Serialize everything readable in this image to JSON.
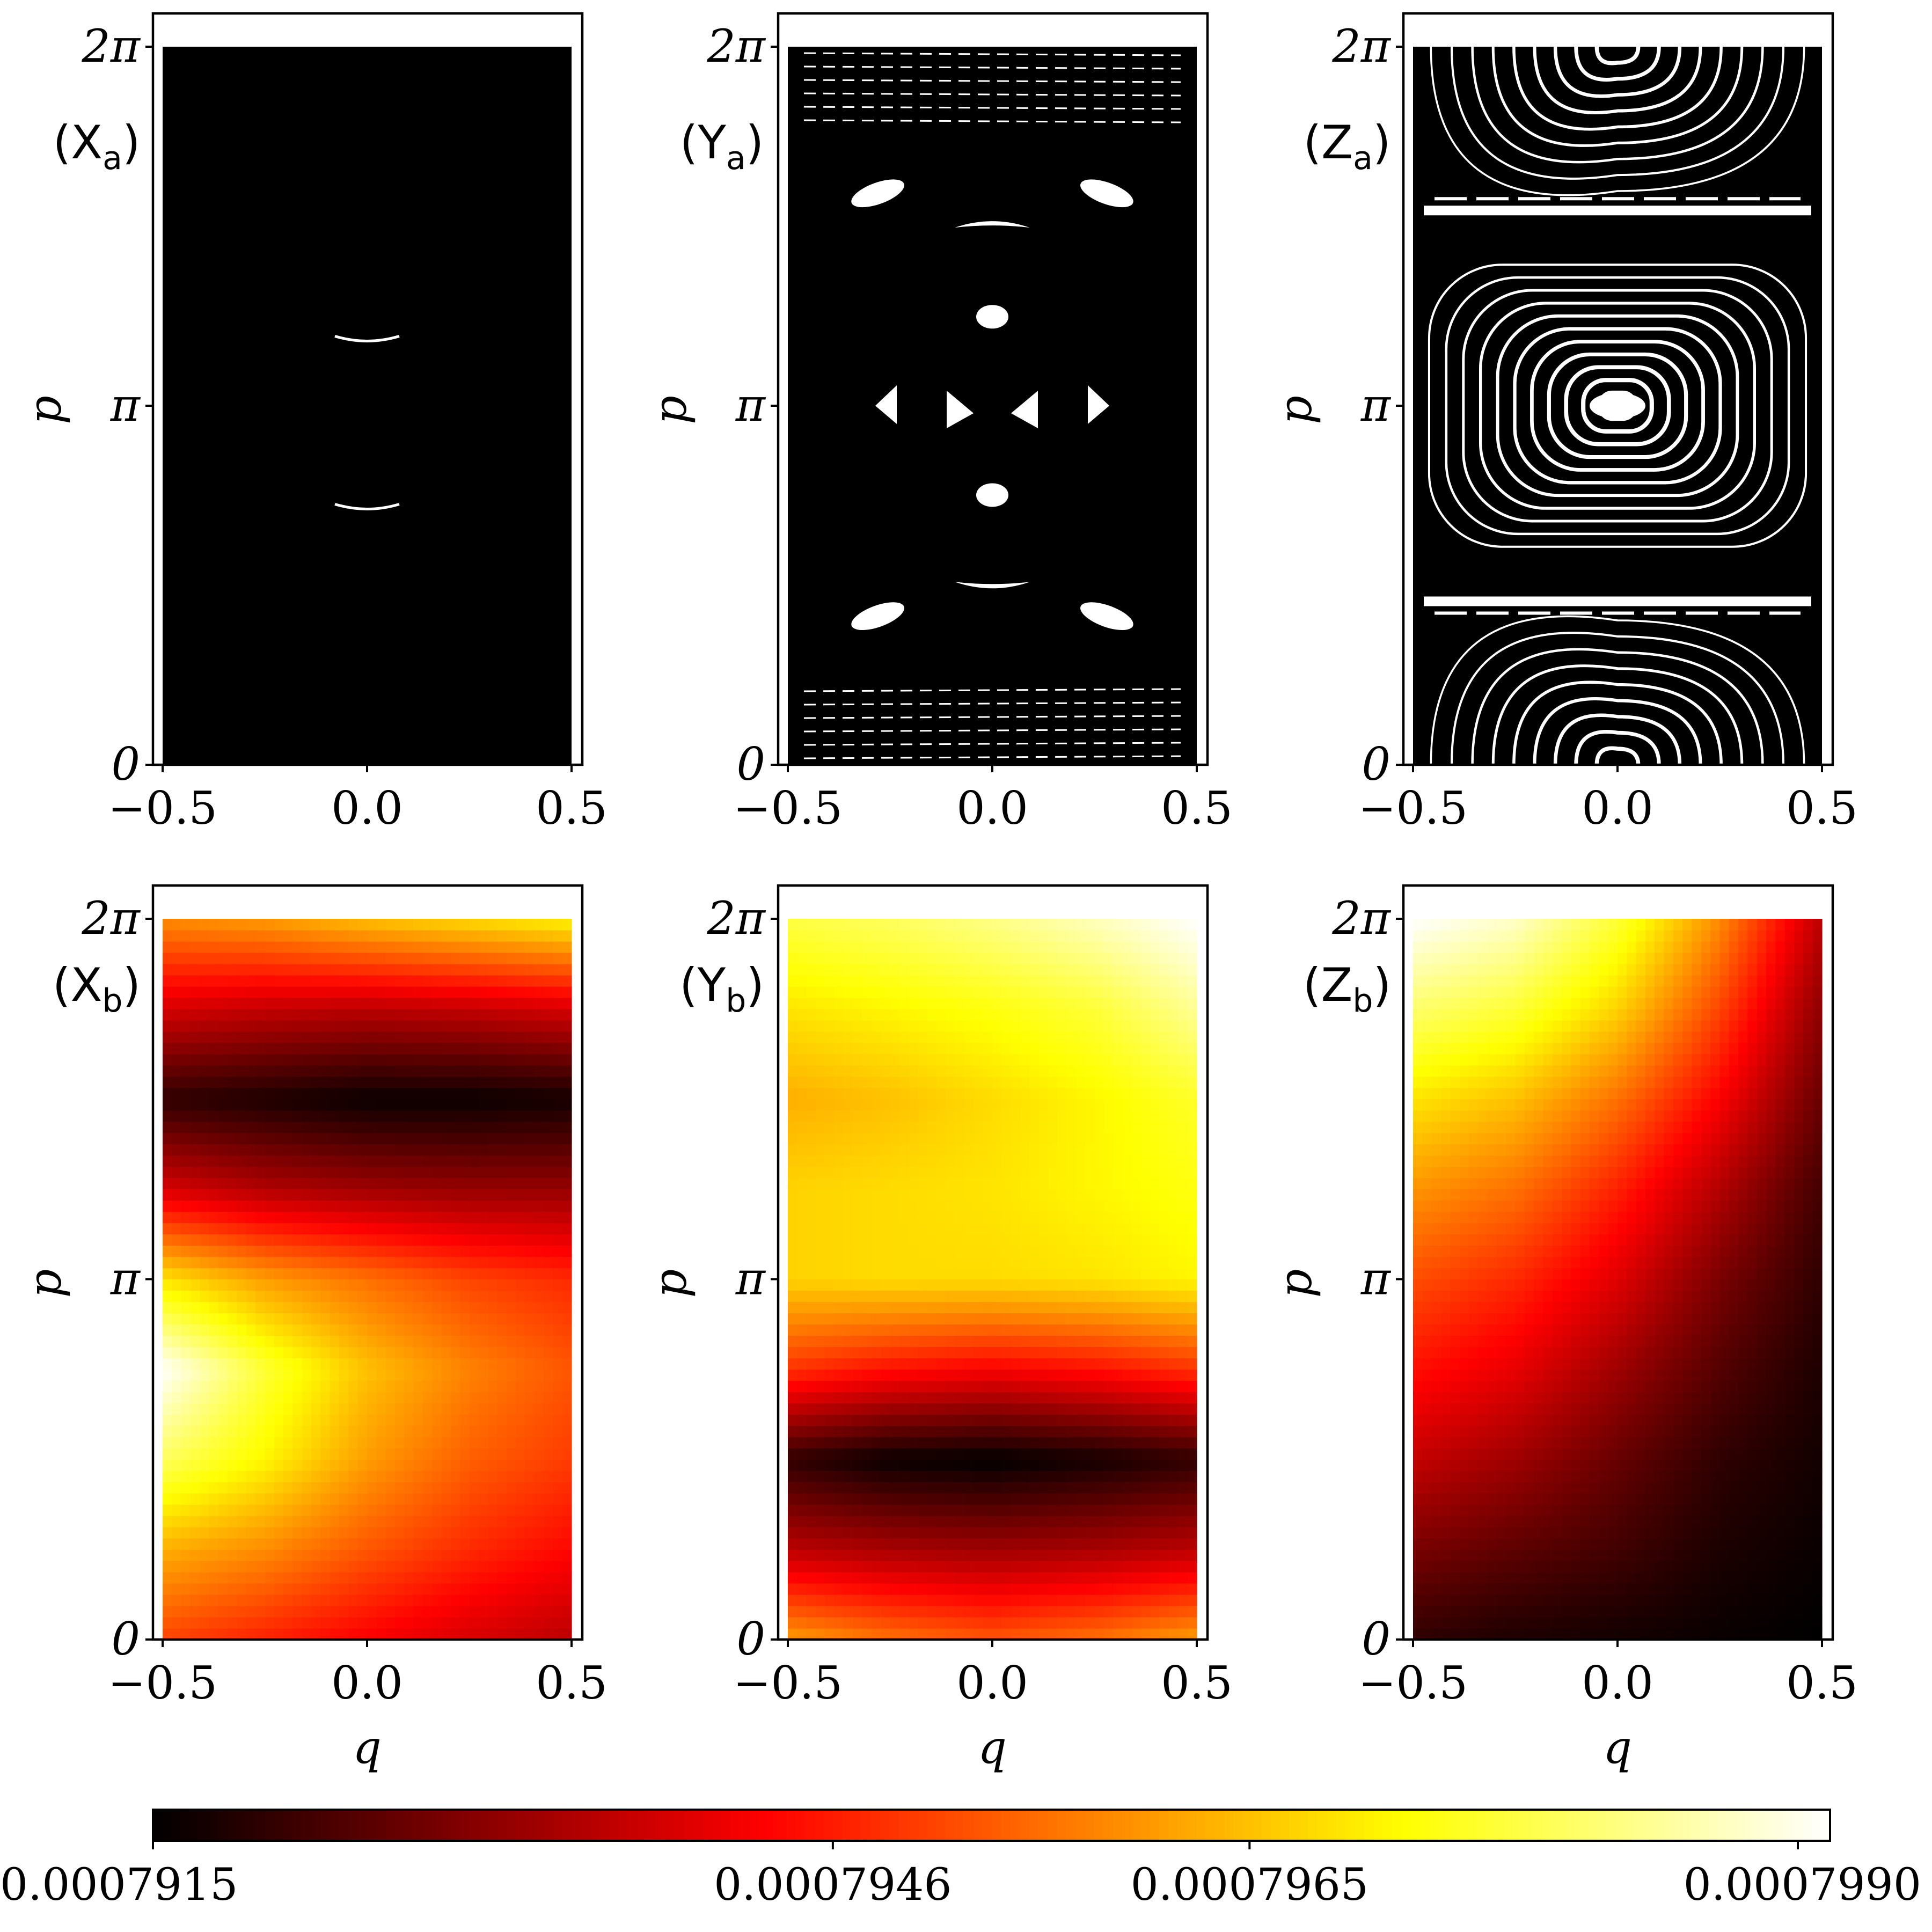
{
  "chart_data": {
    "type": "heatmap",
    "layout": "2 rows x 3 columns of phase-space panels plus a shared horizontal colorbar",
    "panels": [
      {
        "tag_letter": "X",
        "tag_sub": "a",
        "kind": "phase-portrait",
        "pattern": "chaotic",
        "xlabel": "",
        "ylabel": "p",
        "xlim": [
          -0.5,
          0.5
        ],
        "ylim": [
          0,
          6.2832
        ],
        "xticks": [
          "−0.5",
          "0.0",
          "0.5"
        ],
        "yticks": [
          "0",
          "π",
          "2π"
        ]
      },
      {
        "tag_letter": "Y",
        "tag_sub": "a",
        "kind": "phase-portrait",
        "pattern": "mixed",
        "xlabel": "",
        "ylabel": "p",
        "xlim": [
          -0.5,
          0.5
        ],
        "ylim": [
          0,
          6.2832
        ],
        "xticks": [
          "−0.5",
          "0.0",
          "0.5"
        ],
        "yticks": [
          "0",
          "π",
          "2π"
        ]
      },
      {
        "tag_letter": "Z",
        "tag_sub": "a",
        "kind": "phase-portrait",
        "pattern": "regular",
        "xlabel": "",
        "ylabel": "p",
        "xlim": [
          -0.5,
          0.5
        ],
        "ylim": [
          0,
          6.2832
        ],
        "xticks": [
          "−0.5",
          "0.0",
          "0.5"
        ],
        "yticks": [
          "0",
          "π",
          "2π"
        ]
      },
      {
        "tag_letter": "X",
        "tag_sub": "b",
        "kind": "field",
        "xlabel": "q",
        "ylabel": "p",
        "xlim": [
          -0.5,
          0.5
        ],
        "ylim": [
          0,
          6.2832
        ],
        "xticks": [
          "−0.5",
          "0.0",
          "0.5"
        ],
        "yticks": [
          "0",
          "π",
          "2π"
        ],
        "grid": {
          "q": [
            -0.5,
            -0.25,
            0.0,
            0.25,
            0.5
          ],
          "p": [
            0,
            0.785,
            1.571,
            2.356,
            3.142,
            3.927,
            4.712,
            5.498,
            6.283
          ],
          "values": [
            [
              0.000795,
              0.0007946,
              0.0007942,
              0.0007938,
              0.0007935
            ],
            [
              0.0007962,
              0.0007958,
              0.0007952,
              0.0007947,
              0.0007943
            ],
            [
              0.0007978,
              0.000797,
              0.000796,
              0.0007953,
              0.0007949
            ],
            [
              0.000799,
              0.0007975,
              0.0007964,
              0.0007957,
              0.0007952
            ],
            [
              0.0007968,
              0.000796,
              0.0007955,
              0.000795,
              0.0007947
            ],
            [
              0.0007938,
              0.0007934,
              0.0007932,
              0.0007931,
              0.0007931
            ],
            [
              0.000792,
              0.0007918,
              0.0007916,
              0.0007916,
              0.0007917
            ],
            [
              0.0007938,
              0.0007936,
              0.0007935,
              0.0007936,
              0.0007938
            ],
            [
              0.0007958,
              0.000796,
              0.0007964,
              0.0007967,
              0.000797
            ]
          ]
        }
      },
      {
        "tag_letter": "Y",
        "tag_sub": "b",
        "kind": "field",
        "xlabel": "q",
        "ylabel": "p",
        "xlim": [
          -0.5,
          0.5
        ],
        "ylim": [
          0,
          6.2832
        ],
        "xticks": [
          "−0.5",
          "0.0",
          "0.5"
        ],
        "yticks": [
          "0",
          "π",
          "2π"
        ],
        "grid": {
          "q": [
            -0.5,
            -0.25,
            0.0,
            0.25,
            0.5
          ],
          "p": [
            0,
            0.785,
            1.571,
            2.356,
            3.142,
            3.927,
            4.712,
            5.498,
            6.283
          ],
          "values": [
            [
              0.000796,
              0.0007955,
              0.0007952,
              0.0007955,
              0.000796
            ],
            [
              0.0007935,
              0.0007933,
              0.0007932,
              0.0007933,
              0.0007935
            ],
            [
              0.000792,
              0.0007916,
              0.0007915,
              0.0007917,
              0.000792
            ],
            [
              0.0007948,
              0.0007944,
              0.0007942,
              0.0007944,
              0.0007948
            ],
            [
              0.0007966,
              0.0007967,
              0.0007967,
              0.0007968,
              0.000797
            ],
            [
              0.0007966,
              0.0007967,
              0.0007968,
              0.000797,
              0.0007972
            ],
            [
              0.0007962,
              0.0007964,
              0.0007967,
              0.000797,
              0.0007974
            ],
            [
              0.0007968,
              0.000797,
              0.0007972,
              0.0007975,
              0.0007982
            ],
            [
              0.0007976,
              0.0007978,
              0.0007981,
              0.0007985,
              0.000799
            ]
          ]
        }
      },
      {
        "tag_letter": "Z",
        "tag_sub": "b",
        "kind": "field",
        "xlabel": "q",
        "ylabel": "p",
        "xlim": [
          -0.5,
          0.5
        ],
        "ylim": [
          0,
          6.2832
        ],
        "xticks": [
          "−0.5",
          "0.0",
          "0.5"
        ],
        "yticks": [
          "0",
          "π",
          "2π"
        ],
        "grid": {
          "q": [
            -0.5,
            -0.25,
            0.0,
            0.25,
            0.5
          ],
          "p": [
            0,
            0.785,
            1.571,
            2.356,
            3.142,
            3.927,
            4.712,
            5.498,
            6.283
          ],
          "values": [
            [
              0.000792,
              0.0007918,
              0.0007917,
              0.0007916,
              0.0007915
            ],
            [
              0.0007928,
              0.0007925,
              0.0007922,
              0.0007918,
              0.0007916
            ],
            [
              0.0007936,
              0.0007932,
              0.0007926,
              0.000792,
              0.0007917
            ],
            [
              0.0007944,
              0.000794,
              0.0007932,
              0.0007924,
              0.0007918
            ],
            [
              0.0007951,
              0.0007947,
              0.0007939,
              0.0007928,
              0.000792
            ],
            [
              0.0007959,
              0.0007955,
              0.0007946,
              0.0007934,
              0.0007922
            ],
            [
              0.0007968,
              0.0007964,
              0.0007955,
              0.0007942,
              0.0007926
            ],
            [
              0.0007979,
              0.0007975,
              0.0007966,
              0.000795,
              0.000793
            ],
            [
              0.000799,
              0.0007986,
              0.0007975,
              0.0007958,
              0.0007935
            ]
          ]
        }
      }
    ],
    "colorbar": {
      "colormap": "hot",
      "min": 0.0007915,
      "max": 0.000799,
      "ticks": [
        0.0007915,
        0.0007946,
        0.0007965,
        0.000799
      ],
      "tick_labels": [
        "0.0007915",
        "0.0007946",
        "0.0007965",
        "0.0007990"
      ]
    },
    "legend": "none",
    "grid_lines": false
  }
}
